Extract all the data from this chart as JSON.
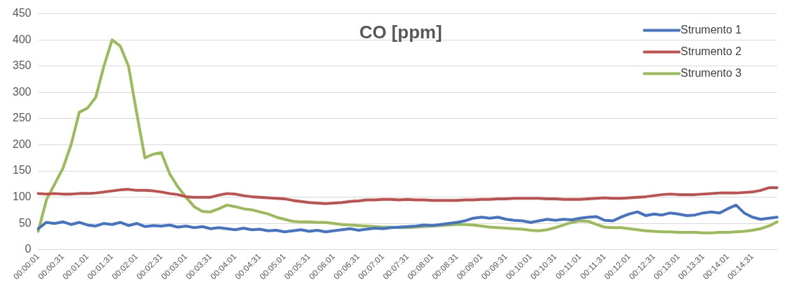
{
  "chart_data": {
    "type": "line",
    "title": "CO [ppm]",
    "categories": [
      "00:00:01",
      null,
      null,
      "00:00:31",
      null,
      null,
      "00:01:01",
      null,
      null,
      "00:01:31",
      null,
      null,
      "00:02:01",
      null,
      null,
      "00:02:31",
      null,
      null,
      "00:03:01",
      null,
      null,
      "00:03:31",
      null,
      null,
      "00:04:01",
      null,
      null,
      "00:04:31",
      null,
      null,
      "00:05:01",
      null,
      null,
      "00:05:31",
      null,
      null,
      "00:06:01",
      null,
      null,
      "00:06:31",
      null,
      null,
      "00:07:01",
      null,
      null,
      "00:07:31",
      null,
      null,
      "00:08:01",
      null,
      null,
      "00:08:31",
      null,
      null,
      "00:09:01",
      null,
      null,
      "00:09:31",
      null,
      null,
      "00:10:01",
      null,
      null,
      "00:10:31",
      null,
      null,
      "00:11:01",
      null,
      null,
      "00:11:31",
      null,
      null,
      "00:12:01",
      null,
      null,
      "00:12:31",
      null,
      null,
      "00:13:01",
      null,
      null,
      "00:13:31",
      null,
      null,
      "00:14:01",
      null,
      null,
      "00:14:31",
      null,
      null,
      null
    ],
    "series": [
      {
        "name": "Strumento 1",
        "color": "#4472c4",
        "values": [
          40,
          52,
          50,
          53,
          48,
          52,
          47,
          45,
          50,
          48,
          52,
          46,
          50,
          44,
          46,
          45,
          47,
          43,
          45,
          42,
          44,
          40,
          42,
          40,
          38,
          41,
          38,
          39,
          36,
          37,
          34,
          36,
          38,
          35,
          37,
          34,
          36,
          38,
          40,
          37,
          39,
          41,
          40,
          42,
          43,
          44,
          45,
          47,
          46,
          48,
          50,
          52,
          55,
          60,
          62,
          60,
          62,
          58,
          56,
          55,
          52,
          55,
          58,
          56,
          58,
          57,
          60,
          62,
          63,
          56,
          55,
          62,
          68,
          72,
          65,
          68,
          66,
          70,
          68,
          65,
          66,
          70,
          72,
          70,
          78,
          85,
          70,
          62,
          58,
          60,
          62
        ]
      },
      {
        "name": "Strumento 2",
        "color": "#c0504d",
        "values": [
          107,
          106,
          107,
          106,
          106,
          107,
          107,
          108,
          110,
          112,
          114,
          115,
          113,
          113,
          112,
          110,
          107,
          105,
          101,
          100,
          100,
          100,
          104,
          107,
          106,
          103,
          101,
          100,
          99,
          98,
          97,
          94,
          92,
          90,
          89,
          88,
          89,
          90,
          92,
          93,
          95,
          95,
          96,
          96,
          95,
          96,
          95,
          95,
          94,
          94,
          94,
          94,
          95,
          95,
          96,
          96,
          97,
          97,
          98,
          98,
          98,
          98,
          97,
          97,
          96,
          96,
          96,
          97,
          98,
          99,
          98,
          98,
          99,
          100,
          101,
          103,
          105,
          106,
          105,
          105,
          105,
          106,
          107,
          108,
          108,
          108,
          109,
          110,
          113,
          118,
          118
        ]
      },
      {
        "name": "Strumento 3",
        "color": "#9bbb59",
        "values": [
          35,
          95,
          125,
          155,
          200,
          262,
          270,
          290,
          350,
          400,
          388,
          350,
          260,
          175,
          182,
          185,
          145,
          120,
          100,
          82,
          73,
          72,
          78,
          85,
          82,
          78,
          76,
          72,
          68,
          62,
          58,
          54,
          53,
          53,
          52,
          52,
          50,
          48,
          47,
          46,
          45,
          44,
          43,
          43,
          42,
          42,
          43,
          44,
          45,
          46,
          47,
          48,
          48,
          47,
          45,
          43,
          42,
          41,
          40,
          39,
          37,
          36,
          38,
          42,
          47,
          52,
          55,
          54,
          48,
          43,
          42,
          42,
          40,
          38,
          36,
          35,
          34,
          34,
          33,
          33,
          33,
          32,
          32,
          33,
          33,
          34,
          35,
          37,
          40,
          45,
          53
        ]
      }
    ],
    "ylim": [
      0,
      450
    ],
    "yticks": [
      0,
      50,
      100,
      150,
      200,
      250,
      300,
      350,
      400,
      450
    ],
    "grid": "y",
    "legend": "top right",
    "marker": "none",
    "line_style": "solid"
  }
}
